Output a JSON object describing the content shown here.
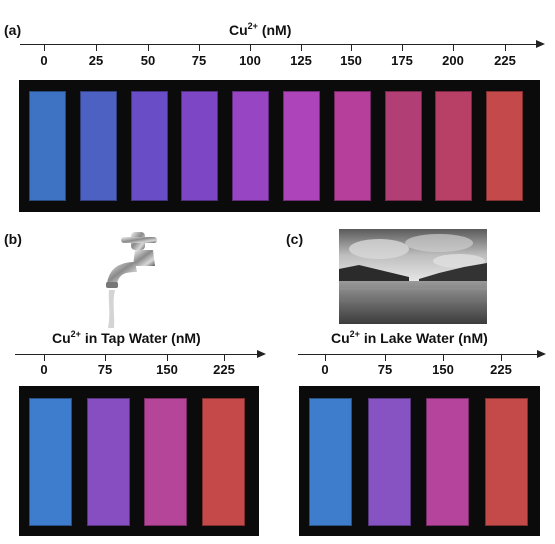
{
  "panels": {
    "a": {
      "label": "(a)",
      "title_main": "Cu",
      "title_sup": "2+",
      "title_rest": " (nM)",
      "ticks": [
        "0",
        "25",
        "50",
        "75",
        "100",
        "125",
        "150",
        "175",
        "200",
        "225"
      ],
      "colors": [
        "#3f75c8",
        "#4f63c6",
        "#6a4fcb",
        "#8047c8",
        "#9a46c6",
        "#b145bd",
        "#b9409e",
        "#b63f78",
        "#bc4067",
        "#c84a4c"
      ]
    },
    "b": {
      "label": "(b)",
      "title_main": "Cu",
      "title_sup": "2+",
      "title_rest": " in Tap Water (nM)",
      "ticks": [
        "0",
        "75",
        "150",
        "225"
      ],
      "colors": [
        "#3f7fd1",
        "#8a50c5",
        "#b8469b",
        "#c94a4a"
      ],
      "icon": "faucet-icon"
    },
    "c": {
      "label": "(c)",
      "title_main": "Cu",
      "title_sup": "2+",
      "title_rest": " in Lake Water (nM)",
      "ticks": [
        "0",
        "75",
        "150",
        "225"
      ],
      "colors": [
        "#3f80d0",
        "#8a55c6",
        "#b8459f",
        "#c84b4b"
      ],
      "image": "lake-photo"
    }
  }
}
